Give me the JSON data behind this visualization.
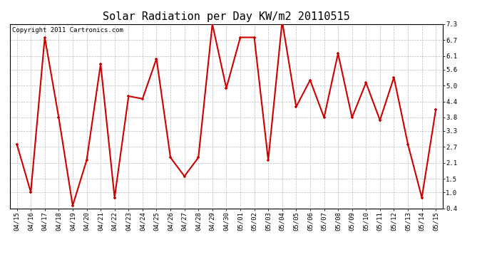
{
  "title": "Solar Radiation per Day KW/m2 20110515",
  "copyright": "Copyright 2011 Cartronics.com",
  "dates": [
    "04/15",
    "04/16",
    "04/17",
    "04/18",
    "04/19",
    "04/20",
    "04/21",
    "04/22",
    "04/23",
    "04/24",
    "04/25",
    "04/26",
    "04/27",
    "04/28",
    "04/29",
    "04/30",
    "05/01",
    "05/02",
    "05/03",
    "05/04",
    "05/05",
    "05/06",
    "05/07",
    "05/08",
    "05/09",
    "05/10",
    "05/11",
    "05/12",
    "05/13",
    "05/14",
    "05/15"
  ],
  "values": [
    2.8,
    1.0,
    6.8,
    3.8,
    0.5,
    2.2,
    5.8,
    0.8,
    4.6,
    4.5,
    6.0,
    2.3,
    1.6,
    2.3,
    7.3,
    4.9,
    6.8,
    6.8,
    2.2,
    7.4,
    4.2,
    5.2,
    3.8,
    6.2,
    3.8,
    5.1,
    3.7,
    5.3,
    2.8,
    0.8,
    4.1
  ],
  "line_color": "#cc0000",
  "marker_color": "#cc0000",
  "bg_color": "#ffffff",
  "grid_color": "#bbbbbb",
  "ylim": [
    0.4,
    7.3
  ],
  "yticks": [
    0.4,
    1.0,
    1.5,
    2.1,
    2.7,
    3.3,
    3.8,
    4.4,
    5.0,
    5.6,
    6.1,
    6.7,
    7.3
  ],
  "title_fontsize": 11,
  "copyright_fontsize": 6.5,
  "tick_fontsize": 6.5,
  "marker_size": 3,
  "line_width": 1.5
}
